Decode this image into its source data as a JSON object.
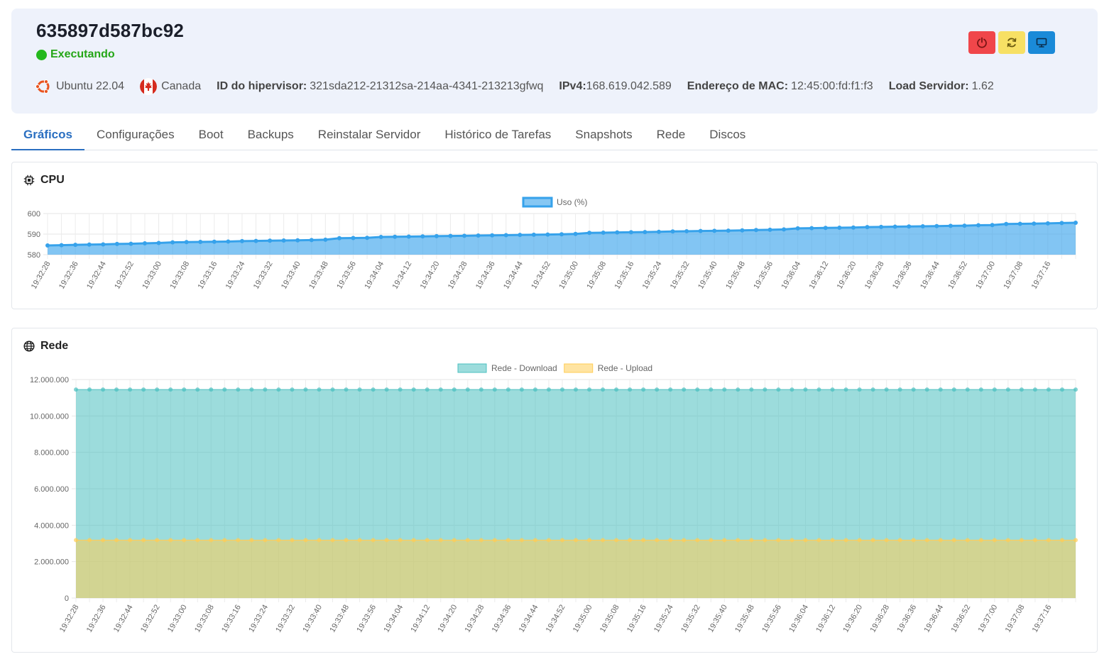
{
  "server": {
    "name": "635897d587bc92",
    "status": "Executando",
    "os": "Ubuntu 22.04",
    "location": "Canada",
    "hypervisor_label": "ID do hipervisor:",
    "hypervisor_id": "321sda212-21312sa-214aa-4341-213213gfwq",
    "ipv4_label": "IPv4:",
    "ipv4": "168.619.042.589",
    "mac_label": "Endereço de MAC:",
    "mac": "12:45:00:fd:f1:f3",
    "load_label": "Load Servidor:",
    "load": "1.62"
  },
  "actions": {
    "power_icon": "power-icon",
    "restart_icon": "refresh-icon",
    "console_icon": "monitor-icon",
    "colors": {
      "power": "#f0464a",
      "restart": "#f7e064",
      "console": "#1a8ad8"
    }
  },
  "tabs": [
    {
      "label": "Gráficos",
      "active": true
    },
    {
      "label": "Configurações"
    },
    {
      "label": "Boot"
    },
    {
      "label": "Backups"
    },
    {
      "label": "Reinstalar Servidor"
    },
    {
      "label": "Histórico de Tarefas"
    },
    {
      "label": "Snapshots"
    },
    {
      "label": "Rede"
    },
    {
      "label": "Discos"
    }
  ],
  "panels": {
    "cpu_title": "CPU",
    "network_title": "Rede"
  },
  "chart_data": [
    {
      "id": "cpu",
      "type": "area",
      "x": [
        "19:32:28",
        "19:32:32",
        "19:32:36",
        "19:32:40",
        "19:32:44",
        "19:32:48",
        "19:32:52",
        "19:32:56",
        "19:33:00",
        "19:33:04",
        "19:33:08",
        "19:33:12",
        "19:33:16",
        "19:33:20",
        "19:33:24",
        "19:33:28",
        "19:33:32",
        "19:33:36",
        "19:33:40",
        "19:33:44",
        "19:33:48",
        "19:33:52",
        "19:33:56",
        "19:34:00",
        "19:34:04",
        "19:34:08",
        "19:34:12",
        "19:34:16",
        "19:34:20",
        "19:34:24",
        "19:34:28",
        "19:34:32",
        "19:34:36",
        "19:34:40",
        "19:34:44",
        "19:34:48",
        "19:34:52",
        "19:34:56",
        "19:35:00",
        "19:35:04",
        "19:35:08",
        "19:35:12",
        "19:35:16",
        "19:35:20",
        "19:35:24",
        "19:35:28",
        "19:35:32",
        "19:35:36",
        "19:35:40",
        "19:35:44",
        "19:35:48",
        "19:35:52",
        "19:35:56",
        "19:36:00",
        "19:36:04",
        "19:36:08",
        "19:36:12",
        "19:36:16",
        "19:36:20",
        "19:36:24",
        "19:36:28",
        "19:36:32",
        "19:36:36",
        "19:36:40",
        "19:36:44",
        "19:36:48",
        "19:36:52",
        "19:36:56",
        "19:37:00",
        "19:37:04",
        "19:37:08",
        "19:37:12",
        "19:37:16",
        "19:37:20",
        "19:37:24"
      ],
      "series": [
        {
          "name": "Uso (%)",
          "color": "#36a2eb",
          "values": [
            584.5,
            584.6,
            584.8,
            584.9,
            585.0,
            585.2,
            585.3,
            585.5,
            585.7,
            586.0,
            586.1,
            586.2,
            586.3,
            586.4,
            586.6,
            586.7,
            586.8,
            586.9,
            587.0,
            587.1,
            587.3,
            588.0,
            588.1,
            588.2,
            588.6,
            588.7,
            588.8,
            588.9,
            589.0,
            589.1,
            589.2,
            589.3,
            589.4,
            589.5,
            589.6,
            589.7,
            589.8,
            589.9,
            590.1,
            590.6,
            590.7,
            590.8,
            590.9,
            591.0,
            591.1,
            591.3,
            591.4,
            591.5,
            591.6,
            591.7,
            591.8,
            592.0,
            592.1,
            592.3,
            592.8,
            592.9,
            593.0,
            593.1,
            593.2,
            593.4,
            593.5,
            593.6,
            593.7,
            593.8,
            593.9,
            594.0,
            594.1,
            594.3,
            594.4,
            594.9,
            595.0,
            595.1,
            595.2,
            595.4,
            595.5
          ]
        }
      ],
      "ylim": [
        580,
        600
      ],
      "y_ticks": [
        "600",
        "590",
        "580"
      ],
      "x_tick_labels": [
        "19:32:28",
        "19:32:36",
        "19:32:44",
        "19:32:52",
        "19:33:00",
        "19:33:08",
        "19:33:16",
        "19:33:24",
        "19:33:32",
        "19:33:40",
        "19:33:48",
        "19:33:56",
        "19:34:04",
        "19:34:12",
        "19:34:20",
        "19:34:28",
        "19:34:36",
        "19:34:44",
        "19:34:52",
        "19:35:00",
        "19:35:08",
        "19:35:16",
        "19:35:24",
        "19:35:32",
        "19:35:40",
        "19:35:48",
        "19:35:56",
        "19:36:04",
        "19:36:12",
        "19:36:20",
        "19:36:28",
        "19:36:36",
        "19:36:44",
        "19:36:52",
        "19:37:00",
        "19:37:08",
        "19:37:16"
      ],
      "legend": "top-center",
      "grid": true
    },
    {
      "id": "network",
      "type": "area",
      "x": [
        "19:32:28",
        "19:32:32",
        "19:32:36",
        "19:32:40",
        "19:32:44",
        "19:32:48",
        "19:32:52",
        "19:32:56",
        "19:33:00",
        "19:33:04",
        "19:33:08",
        "19:33:12",
        "19:33:16",
        "19:33:20",
        "19:33:24",
        "19:33:28",
        "19:33:32",
        "19:33:36",
        "19:33:40",
        "19:33:44",
        "19:33:48",
        "19:33:52",
        "19:33:56",
        "19:34:00",
        "19:34:04",
        "19:34:08",
        "19:34:12",
        "19:34:16",
        "19:34:20",
        "19:34:24",
        "19:34:28",
        "19:34:32",
        "19:34:36",
        "19:34:40",
        "19:34:44",
        "19:34:48",
        "19:34:52",
        "19:34:56",
        "19:35:00",
        "19:35:04",
        "19:35:08",
        "19:35:12",
        "19:35:16",
        "19:35:20",
        "19:35:24",
        "19:35:28",
        "19:35:32",
        "19:35:36",
        "19:35:40",
        "19:35:44",
        "19:35:48",
        "19:35:52",
        "19:35:56",
        "19:36:00",
        "19:36:04",
        "19:36:08",
        "19:36:12",
        "19:36:16",
        "19:36:20",
        "19:36:24",
        "19:36:28",
        "19:36:32",
        "19:36:36",
        "19:36:40",
        "19:36:44",
        "19:36:48",
        "19:36:52",
        "19:36:56",
        "19:37:00",
        "19:37:04",
        "19:37:08",
        "19:37:12",
        "19:37:16",
        "19:37:20",
        "19:37:24"
      ],
      "series": [
        {
          "name": "Rede - Download",
          "color": "#4bc0c0",
          "constant": 11450000
        },
        {
          "name": "Rede - Upload",
          "color": "#ffcd56",
          "constant": 3180000
        }
      ],
      "ylim": [
        0,
        12000000
      ],
      "y_ticks": [
        "12.000.000",
        "10.000.000",
        "8.000.000",
        "6.000.000",
        "4.000.000",
        "2.000.000",
        "0"
      ],
      "x_tick_labels": [
        "19:32:28",
        "19:32:36",
        "19:32:44",
        "19:32:52",
        "19:33:00",
        "19:33:08",
        "19:33:16",
        "19:33:24",
        "19:33:32",
        "19:33:40",
        "19:33:48",
        "19:33:56",
        "19:34:04",
        "19:34:12",
        "19:34:20",
        "19:34:28",
        "19:34:36",
        "19:34:44",
        "19:34:52",
        "19:35:00",
        "19:35:08",
        "19:35:16",
        "19:35:24",
        "19:35:32",
        "19:35:40",
        "19:35:48",
        "19:35:56",
        "19:36:04",
        "19:36:12",
        "19:36:20",
        "19:36:28",
        "19:36:36",
        "19:36:44",
        "19:36:52",
        "19:37:00",
        "19:37:08",
        "19:37:16"
      ],
      "legend": "top-center",
      "grid": true
    }
  ]
}
